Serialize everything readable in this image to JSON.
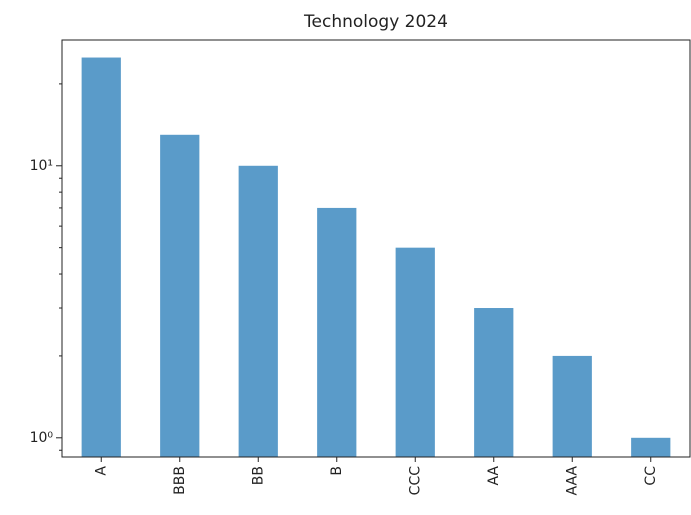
{
  "chart_data": {
    "type": "bar",
    "title": "Technology 2024",
    "categories": [
      "A",
      "BBB",
      "BB",
      "B",
      "CCC",
      "AA",
      "AAA",
      "CC"
    ],
    "values": [
      25,
      13,
      10,
      7,
      5,
      3,
      2,
      1
    ],
    "color": "#5a9bc9",
    "log_scale": true,
    "ylim": [
      0.85,
      29
    ],
    "yticks": [
      {
        "value": 1,
        "label": "10⁰"
      },
      {
        "value": 10,
        "label": "10¹"
      }
    ],
    "yminor_ticks": [
      0.9,
      2,
      3,
      4,
      5,
      6,
      7,
      8,
      9,
      20
    ],
    "grid": false
  }
}
